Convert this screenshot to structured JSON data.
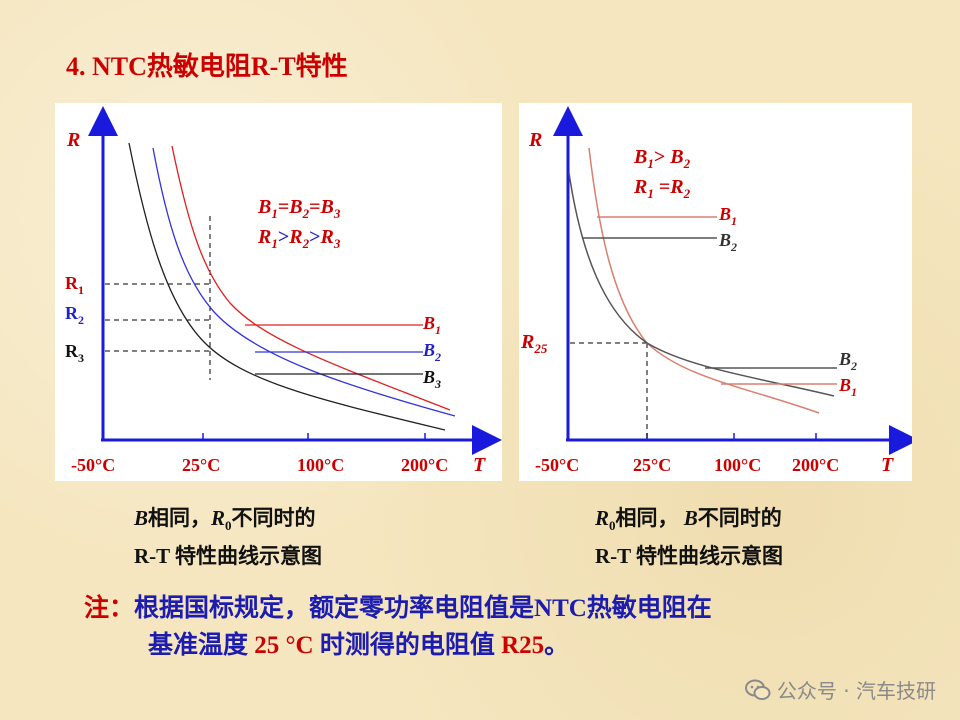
{
  "title": "4. NTC热敏电阻R-T特性",
  "left_chart": {
    "y_axis_label": "R",
    "x_axis_label": "T",
    "x_ticks": [
      "-50°C",
      "25°C",
      "100°C",
      "200°C"
    ],
    "r_labels": {
      "r1": "R",
      "r1_sub": "1",
      "r2": "R",
      "r2_sub": "2",
      "r3": "R",
      "r3_sub": "3"
    },
    "annotation_line1": {
      "a": "B",
      "a_sub": "1",
      "b": "B",
      "b_sub": "2",
      "c": "B",
      "c_sub": "3",
      "eq": "="
    },
    "annotation_line2": {
      "a": "R",
      "a_sub": "1",
      "b": "R",
      "b_sub": "2",
      "c": "R",
      "c_sub": "3",
      "gt": ">"
    },
    "curve_labels": [
      {
        "main": "B",
        "sub": "1",
        "color": "#cc0000"
      },
      {
        "main": "B",
        "sub": "2",
        "color": "#2222cc"
      },
      {
        "main": "B",
        "sub": "3",
        "color": "#111111"
      }
    ],
    "colors": {
      "curve1": "#e02020",
      "curve2": "#3333dd",
      "curve3": "#222222",
      "axis": "#1a1adc"
    }
  },
  "right_chart": {
    "y_axis_label": "R",
    "x_axis_label": "T",
    "x_ticks": [
      "-50°C",
      "25°C",
      "100°C",
      "200°C"
    ],
    "r25_main": "R",
    "r25_sub": "25",
    "annotation_line1": {
      "a": "B",
      "a_sub": "1",
      "op": ">",
      "b": "B",
      "b_sub": "2"
    },
    "annotation_line2": {
      "a": "R",
      "a_sub": "1",
      "op": "=",
      "b": "R",
      "b_sub": "2"
    },
    "upper_labels": [
      {
        "main": "B",
        "sub": "1"
      },
      {
        "main": "B",
        "sub": "2"
      }
    ],
    "lower_labels": [
      {
        "main": "B",
        "sub": "2"
      },
      {
        "main": "B",
        "sub": "1"
      }
    ],
    "colors": {
      "curve1": "#d98070",
      "curve2": "#555555",
      "axis": "#1a1adc"
    }
  },
  "caption_left": {
    "line1_b": "B",
    "line1_mid": "相同，",
    "line1_r": "R",
    "line1_r_sub": "0",
    "line1_end": "不同时的",
    "line2": "R-T 特性曲线示意图"
  },
  "caption_right": {
    "line1_r": "R",
    "line1_r_sub": "0",
    "line1_mid": "相同， ",
    "line1_b": "B",
    "line1_end": "不同时的",
    "line2": "R-T 特性曲线示意图"
  },
  "note": {
    "prefix": "注：",
    "line1": "根据国标规定，额定零功率电阻值是NTC热敏电阻在",
    "line2_start": "基准温度 ",
    "line2_temp": "25 °C",
    "line2_mid": " 时测得的电阻值 ",
    "line2_r25": "R25",
    "line2_end": "。"
  },
  "watermark": "公众号 · 汽车技研"
}
